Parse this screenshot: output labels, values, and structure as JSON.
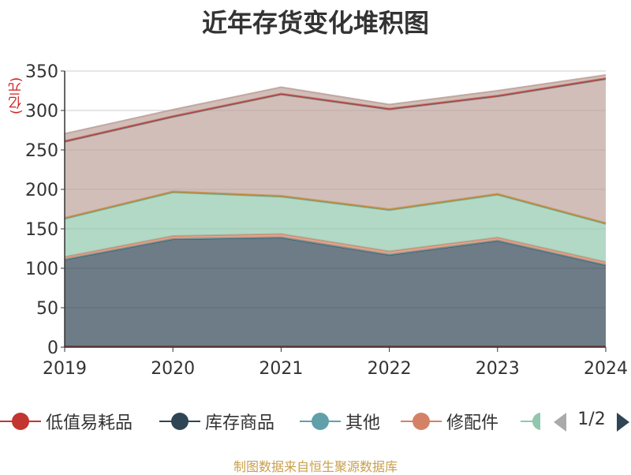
{
  "title": "近年存货变化堆积图",
  "y_unit": "(亿元)",
  "source_note": "制图数据来自恒生聚源数据库",
  "legend_page": "1/2",
  "legend_items": [
    {
      "label": "低值易耗品",
      "color": "#c23531"
    },
    {
      "label": "库存商品",
      "color": "#2f4554"
    },
    {
      "label": "其他",
      "color": "#61a0a8"
    },
    {
      "label": "修配件",
      "color": "#d48265"
    },
    {
      "label": "",
      "color": "#91c7ae"
    }
  ],
  "chart_data": {
    "type": "area",
    "stacked": true,
    "categories": [
      "2019",
      "2020",
      "2021",
      "2022",
      "2023",
      "2024"
    ],
    "ylim": [
      0,
      350
    ],
    "yticks": [
      0,
      50,
      100,
      150,
      200,
      250,
      300,
      350
    ],
    "grid": true,
    "series": [
      {
        "name": "低值易耗品",
        "color": "#c23531",
        "values": [
          1,
          1,
          1,
          1,
          1,
          1
        ]
      },
      {
        "name": "库存商品",
        "color": "#2f4554",
        "values": [
          110,
          136,
          138,
          116,
          134,
          103
        ]
      },
      {
        "name": "其他",
        "color": "#61a0a8",
        "values": [
          0.5,
          0.5,
          0.5,
          0.5,
          0.5,
          0.5
        ]
      },
      {
        "name": "修配件",
        "color": "#d48265",
        "values": [
          3,
          3.5,
          4,
          4,
          3.5,
          3.5
        ]
      },
      {
        "color": "#91c7ae",
        "values": [
          48,
          55,
          47,
          52,
          54,
          48
        ]
      },
      {
        "color": "#749f83",
        "values": [
          0.5,
          0.5,
          0.5,
          0.5,
          0.5,
          0.5
        ]
      },
      {
        "color": "#ca8622",
        "values": [
          1,
          1,
          1,
          1,
          1,
          1
        ]
      },
      {
        "color": "#bda29a",
        "values": [
          96,
          94,
          128,
          126,
          123,
          182
        ]
      },
      {
        "color": "#6e7074",
        "values": [
          0.5,
          0.5,
          0.5,
          0.5,
          0.5,
          0.5
        ]
      },
      {
        "color": "#c23531",
        "values": [
          1,
          1,
          1,
          1,
          1,
          1
        ]
      },
      {
        "color": "#bda29a",
        "values": [
          9,
          8,
          8,
          5,
          6,
          4
        ]
      }
    ]
  }
}
